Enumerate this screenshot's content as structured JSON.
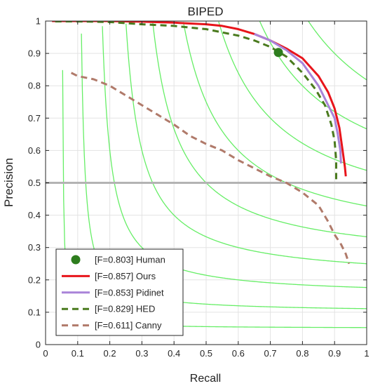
{
  "chart_data": {
    "type": "line",
    "title": "BIPED",
    "xlabel": "Recall",
    "ylabel": "Precision",
    "xlim": [
      0,
      1
    ],
    "ylim": [
      0,
      1
    ],
    "grid": true,
    "x_ticks": [
      "0",
      "0.1",
      "0.2",
      "0.3",
      "0.4",
      "0.5",
      "0.6",
      "0.7",
      "0.8",
      "0.9",
      "1"
    ],
    "y_ticks": [
      "0",
      "0.1",
      "0.2",
      "0.3",
      "0.4",
      "0.5",
      "0.6",
      "0.7",
      "0.8",
      "0.9",
      "1"
    ],
    "reference_line": {
      "y": 0.5,
      "color": "#b3b3b3"
    },
    "iso_f_curves": {
      "color": "#66ee66",
      "f_values": [
        0.1,
        0.2,
        0.3,
        0.4,
        0.5,
        0.6,
        0.7,
        0.8,
        0.9
      ]
    },
    "legend": {
      "position": "bottom-left"
    },
    "series": [
      {
        "name": "[F=0.803] Human",
        "style": "marker",
        "color": "#2e7d1e",
        "points": [
          [
            0.725,
            0.903
          ]
        ]
      },
      {
        "name": "[F=0.857] Ours",
        "style": "solid",
        "color": "#e8141b",
        "points": [
          [
            0.02,
            1.0
          ],
          [
            0.1,
            1.0
          ],
          [
            0.2,
            1.0
          ],
          [
            0.3,
            0.998
          ],
          [
            0.4,
            0.995
          ],
          [
            0.5,
            0.99
          ],
          [
            0.55,
            0.985
          ],
          [
            0.6,
            0.975
          ],
          [
            0.65,
            0.96
          ],
          [
            0.7,
            0.94
          ],
          [
            0.75,
            0.915
          ],
          [
            0.8,
            0.885
          ],
          [
            0.85,
            0.83
          ],
          [
            0.88,
            0.78
          ],
          [
            0.9,
            0.73
          ],
          [
            0.915,
            0.67
          ],
          [
            0.925,
            0.6
          ],
          [
            0.932,
            0.55
          ],
          [
            0.935,
            0.52
          ]
        ]
      },
      {
        "name": "[F=0.853] Pidinet",
        "style": "solid",
        "color": "#a983d8",
        "points": [
          [
            0.65,
            0.96
          ],
          [
            0.7,
            0.94
          ],
          [
            0.75,
            0.91
          ],
          [
            0.8,
            0.87
          ],
          [
            0.85,
            0.8
          ],
          [
            0.88,
            0.74
          ],
          [
            0.9,
            0.7
          ],
          [
            0.91,
            0.65
          ],
          [
            0.918,
            0.6
          ],
          [
            0.92,
            0.56
          ]
        ]
      },
      {
        "name": "[F=0.829] HED",
        "style": "dashed",
        "color": "#4a7a1e",
        "points": [
          [
            0.03,
            0.999
          ],
          [
            0.1,
            0.999
          ],
          [
            0.2,
            0.997
          ],
          [
            0.3,
            0.99
          ],
          [
            0.4,
            0.985
          ],
          [
            0.5,
            0.975
          ],
          [
            0.6,
            0.955
          ],
          [
            0.65,
            0.94
          ],
          [
            0.7,
            0.92
          ],
          [
            0.75,
            0.89
          ],
          [
            0.8,
            0.84
          ],
          [
            0.84,
            0.79
          ],
          [
            0.87,
            0.74
          ],
          [
            0.89,
            0.68
          ],
          [
            0.9,
            0.63
          ],
          [
            0.905,
            0.57
          ],
          [
            0.905,
            0.5
          ]
        ]
      },
      {
        "name": "[F=0.611] Canny",
        "style": "dashed",
        "color": "#b07a6a",
        "points": [
          [
            0.08,
            0.84
          ],
          [
            0.1,
            0.83
          ],
          [
            0.15,
            0.82
          ],
          [
            0.2,
            0.8
          ],
          [
            0.25,
            0.77
          ],
          [
            0.3,
            0.74
          ],
          [
            0.35,
            0.71
          ],
          [
            0.4,
            0.68
          ],
          [
            0.45,
            0.645
          ],
          [
            0.5,
            0.62
          ],
          [
            0.55,
            0.6
          ],
          [
            0.6,
            0.57
          ],
          [
            0.65,
            0.545
          ],
          [
            0.7,
            0.52
          ],
          [
            0.75,
            0.5
          ],
          [
            0.8,
            0.47
          ],
          [
            0.85,
            0.43
          ],
          [
            0.88,
            0.38
          ],
          [
            0.9,
            0.34
          ],
          [
            0.92,
            0.31
          ],
          [
            0.935,
            0.28
          ],
          [
            0.945,
            0.25
          ]
        ]
      }
    ]
  }
}
